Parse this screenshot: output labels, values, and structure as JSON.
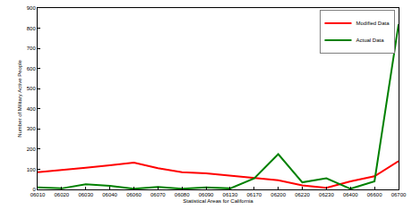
{
  "chart_data": {
    "type": "line",
    "x_label": "Statistical Areas for California",
    "y_label": "Number of Military Active People",
    "categories": [
      "06010",
      "06020",
      "06030",
      "06040",
      "06060",
      "06070",
      "06080",
      "06090",
      "06130",
      "06170",
      "06200",
      "06220",
      "06230",
      "06400",
      "06600",
      "06700"
    ],
    "series": [
      {
        "name": "Modified Data",
        "color": "#ff0000",
        "values": [
          85,
          95,
          108,
          120,
          133,
          105,
          85,
          80,
          68,
          55,
          45,
          20,
          8,
          40,
          65,
          140
        ]
      },
      {
        "name": "Actual Data",
        "color": "#008000",
        "values": [
          10,
          5,
          25,
          18,
          3,
          12,
          3,
          10,
          5,
          55,
          175,
          35,
          55,
          3,
          40,
          820
        ]
      }
    ],
    "ylim": [
      0,
      900
    ],
    "yticks": [
      0,
      100,
      200,
      300,
      400,
      500,
      600,
      700,
      800,
      900
    ],
    "grid": false,
    "legend": "upper right"
  }
}
